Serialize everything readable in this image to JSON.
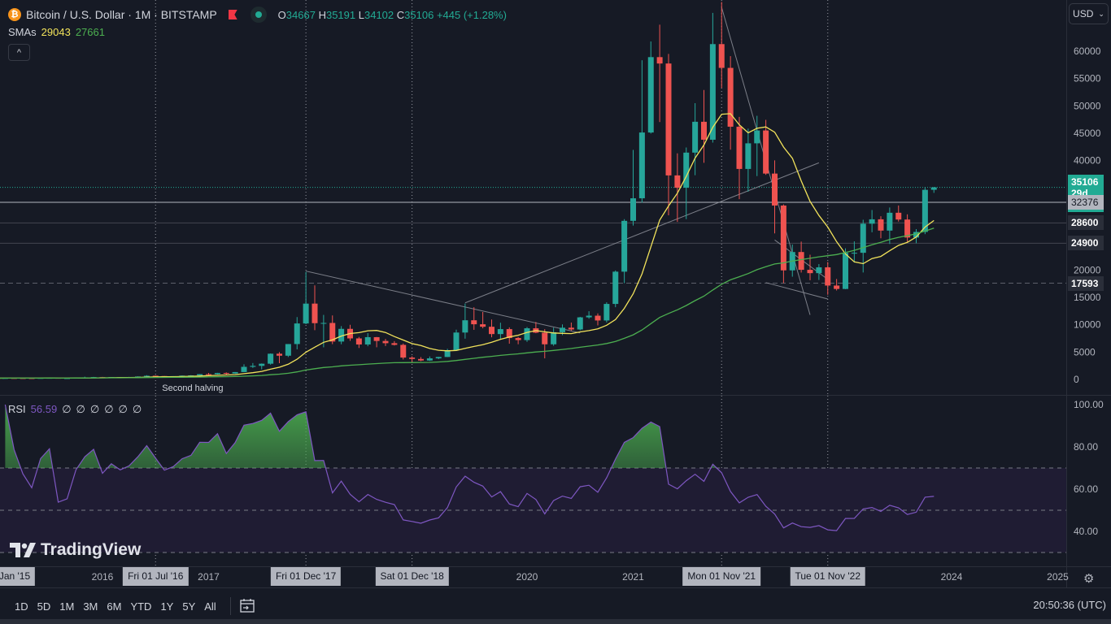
{
  "header": {
    "symbol": "Bitcoin / U.S. Dollar · 1M · BITSTAMP",
    "open_label": "O",
    "open": "34667",
    "high_label": "H",
    "high": "35191",
    "low_label": "L",
    "low": "34102",
    "close_label": "C",
    "close": "35106",
    "change": "+445 (+1.28%)",
    "coin_glyph": "₿"
  },
  "sma_legend": {
    "label": "SMAs",
    "sma1": "29043",
    "sma2": "27661"
  },
  "collapse_glyph": "^",
  "rsi_legend": {
    "label": "RSI",
    "value": "56.59",
    "extras": [
      "∅",
      "∅",
      "∅",
      "∅",
      "∅",
      "∅"
    ]
  },
  "currency": "USD",
  "price_tags": [
    {
      "price": 35106,
      "text": "35106",
      "sub": "29d 4h",
      "bg": "#22ab94",
      "fg": "#ffffff"
    },
    {
      "price": 32376,
      "text": "32376",
      "bg": "#b2b5be",
      "fg": "#131722"
    },
    {
      "price": 28600,
      "text": "28600",
      "bg": "#2a2e39",
      "fg": "#ffffff"
    },
    {
      "price": 24900,
      "text": "24900",
      "bg": "#2a2e39",
      "fg": "#ffffff"
    },
    {
      "price": 17593,
      "text": "17593",
      "bg": "#2a2e39",
      "fg": "#ffffff"
    }
  ],
  "time_labels": [
    {
      "text": "Jan '15",
      "month": "2015-01",
      "box": true
    },
    {
      "text": "2016",
      "month": "2016-01"
    },
    {
      "text": "Fri 01 Jul '16",
      "month": "2016-07",
      "box": true
    },
    {
      "text": "2017",
      "month": "2017-01"
    },
    {
      "text": "Fri 01 Dec '17",
      "month": "2017-12",
      "box": true
    },
    {
      "text": "Sat 01 Dec '18",
      "month": "2018-12",
      "box": true
    },
    {
      "text": "2020",
      "month": "2020-01"
    },
    {
      "text": "2021",
      "month": "2021-01"
    },
    {
      "text": "Mon 01 Nov '21",
      "month": "2021-11",
      "box": true
    },
    {
      "text": "Tue 01 Nov '22",
      "month": "2022-11",
      "box": true
    },
    {
      "text": "2024",
      "month": "2024-01"
    },
    {
      "text": "2025",
      "month": "2025-01"
    }
  ],
  "toolbar": {
    "ranges": [
      "1D",
      "5D",
      "1M",
      "3M",
      "6M",
      "YTD",
      "1Y",
      "5Y",
      "All"
    ],
    "clock": "20:50:36 (UTC)"
  },
  "watermark": "TradingView",
  "colors": {
    "up": "#26a69a",
    "down": "#ef5350",
    "sma1": "#f2e35b",
    "sma2": "#4caf50",
    "rsi": "#7e57c2",
    "bg": "#161a25"
  },
  "chart_data": {
    "type": "candlestick",
    "title": "Bitcoin / U.S. Dollar · 1M · BITSTAMP",
    "start_month": "2015-01",
    "interval": "1M",
    "ylim": [
      0,
      69000
    ],
    "y_ticks": [
      0,
      5000,
      10000,
      15000,
      20000,
      25000,
      30000,
      35000,
      40000,
      45000,
      50000,
      55000,
      60000
    ],
    "y_tick_labels": [
      "0",
      "5000",
      "10000",
      "15000",
      "20000",
      "",
      "",
      "",
      "40000",
      "45000",
      "50000",
      "55000",
      "60000"
    ],
    "ohlc": [
      [
        320,
        320,
        170,
        217
      ],
      [
        217,
        265,
        212,
        254
      ],
      [
        254,
        300,
        240,
        244
      ],
      [
        244,
        260,
        215,
        236
      ],
      [
        236,
        247,
        228,
        230
      ],
      [
        230,
        268,
        222,
        263
      ],
      [
        263,
        318,
        253,
        284
      ],
      [
        284,
        285,
        198,
        230
      ],
      [
        230,
        247,
        226,
        236
      ],
      [
        236,
        335,
        236,
        314
      ],
      [
        314,
        500,
        314,
        377
      ],
      [
        377,
        465,
        350,
        430
      ],
      [
        430,
        460,
        352,
        368
      ],
      [
        368,
        448,
        365,
        437
      ],
      [
        437,
        440,
        390,
        416
      ],
      [
        416,
        470,
        414,
        448
      ],
      [
        448,
        555,
        443,
        531
      ],
      [
        531,
        780,
        530,
        673
      ],
      [
        673,
        704,
        605,
        624
      ],
      [
        624,
        626,
        470,
        573
      ],
      [
        573,
        616,
        570,
        609
      ],
      [
        609,
        725,
        604,
        698
      ],
      [
        698,
        780,
        695,
        742
      ],
      [
        742,
        980,
        740,
        966
      ],
      [
        966,
        1190,
        750,
        965
      ],
      [
        965,
        1210,
        915,
        1190
      ],
      [
        1190,
        1290,
        890,
        1080
      ],
      [
        1080,
        1350,
        1060,
        1348
      ],
      [
        1348,
        2760,
        1340,
        2300
      ],
      [
        2300,
        3000,
        2100,
        2480
      ],
      [
        2480,
        2925,
        1840,
        2875
      ],
      [
        2875,
        4750,
        2700,
        4703
      ],
      [
        4703,
        5000,
        2970,
        4338
      ],
      [
        4338,
        6470,
        4100,
        6468
      ],
      [
        6468,
        11400,
        5500,
        10233
      ],
      [
        10233,
        19666,
        10100,
        13860
      ],
      [
        13860,
        17200,
        9000,
        10285
      ],
      [
        10285,
        11800,
        5873,
        10326
      ],
      [
        10326,
        11700,
        6450,
        6926
      ],
      [
        6926,
        9750,
        6430,
        9245
      ],
      [
        9245,
        9990,
        7050,
        7500
      ],
      [
        7500,
        7770,
        5750,
        6391
      ],
      [
        6391,
        8480,
        6070,
        7727
      ],
      [
        7727,
        7760,
        5880,
        7033
      ],
      [
        7033,
        7410,
        6100,
        6626
      ],
      [
        6626,
        7000,
        6200,
        6318
      ],
      [
        6318,
        6560,
        3650,
        3996
      ],
      [
        3996,
        4240,
        3150,
        3742
      ],
      [
        3742,
        4090,
        3350,
        3457
      ],
      [
        3457,
        4200,
        3380,
        3854
      ],
      [
        3854,
        4130,
        3720,
        4105
      ],
      [
        4105,
        5600,
        4090,
        5350
      ],
      [
        5350,
        9100,
        5330,
        8574
      ],
      [
        8574,
        13880,
        7450,
        10817
      ],
      [
        10817,
        13200,
        9070,
        10085
      ],
      [
        10085,
        12330,
        9350,
        9630
      ],
      [
        9630,
        10950,
        7710,
        8293
      ],
      [
        8293,
        10370,
        7300,
        9199
      ],
      [
        9199,
        9520,
        6530,
        7569
      ],
      [
        7569,
        7750,
        6430,
        7193
      ],
      [
        7193,
        9580,
        6870,
        9350
      ],
      [
        9350,
        10500,
        8450,
        8543
      ],
      [
        8543,
        9190,
        3850,
        6424
      ],
      [
        6424,
        9470,
        6150,
        8629
      ],
      [
        8629,
        10070,
        8100,
        9455
      ],
      [
        9455,
        10400,
        8900,
        9135
      ],
      [
        9135,
        11440,
        8970,
        11351
      ],
      [
        11351,
        12470,
        11100,
        11655
      ],
      [
        11655,
        12070,
        9880,
        10779
      ],
      [
        10779,
        14100,
        10420,
        13804
      ],
      [
        13804,
        19920,
        13200,
        19700
      ],
      [
        19700,
        29300,
        17600,
        28990
      ],
      [
        28990,
        41950,
        28130,
        33114
      ],
      [
        33114,
        58350,
        32300,
        45137
      ],
      [
        45137,
        61780,
        44950,
        58918
      ],
      [
        58918,
        64850,
        47050,
        57750
      ],
      [
        57750,
        59500,
        30000,
        37298
      ],
      [
        37298,
        41330,
        28800,
        35041
      ],
      [
        35041,
        42400,
        29300,
        41462
      ],
      [
        41462,
        50500,
        37330,
        47100
      ],
      [
        47100,
        52920,
        39600,
        43820
      ],
      [
        43820,
        67000,
        43300,
        61300
      ],
      [
        61300,
        69000,
        53260,
        56950
      ],
      [
        56950,
        59100,
        42000,
        46200
      ],
      [
        46200,
        47990,
        32950,
        38480
      ],
      [
        38480,
        45850,
        34320,
        43160
      ],
      [
        43160,
        48190,
        37170,
        45510
      ],
      [
        45510,
        47450,
        37400,
        37630
      ],
      [
        37630,
        40050,
        26700,
        31790
      ],
      [
        31790,
        31990,
        17600,
        19940
      ],
      [
        19940,
        24670,
        18780,
        23290
      ],
      [
        23290,
        25200,
        19540,
        20040
      ],
      [
        20040,
        22800,
        18130,
        19430
      ],
      [
        19430,
        21090,
        18180,
        20490
      ],
      [
        20490,
        21470,
        15480,
        17160
      ],
      [
        17160,
        18360,
        16260,
        16540
      ],
      [
        16540,
        23960,
        16500,
        23130
      ],
      [
        23130,
        25250,
        21360,
        23150
      ],
      [
        23150,
        29190,
        19550,
        28470
      ],
      [
        28470,
        30970,
        26900,
        29270
      ],
      [
        29270,
        29840,
        25810,
        27210
      ],
      [
        27210,
        31430,
        24760,
        30470
      ],
      [
        30470,
        31800,
        28860,
        29230
      ],
      [
        29230,
        30180,
        25170,
        25940
      ],
      [
        25940,
        27480,
        24900,
        26960
      ],
      [
        26960,
        35190,
        26560,
        34660
      ],
      [
        34667,
        35191,
        34102,
        35106
      ]
    ],
    "indicators": [
      {
        "name": "SMA",
        "period": 10,
        "color": "sma1"
      },
      {
        "name": "SMA",
        "period": 50,
        "color": "sma2"
      }
    ],
    "horizontal_lines": [
      {
        "price": 35106,
        "style": "dotted"
      },
      {
        "price": 32376,
        "style": "solid"
      },
      {
        "price": 28600,
        "style": "solid"
      },
      {
        "price": 24900,
        "style": "solid"
      },
      {
        "price": 17593,
        "style": "dashed"
      }
    ],
    "vertical_lines": [
      "2016-07",
      "2017-12",
      "2018-12",
      "2021-11",
      "2022-11"
    ],
    "annotations": [
      {
        "text": "Second halving",
        "month": "2016-07",
        "price": -1500
      }
    ],
    "trendlines": [
      [
        [
          "2017-12",
          19800
        ],
        [
          "2020-07",
          8500
        ]
      ],
      [
        [
          "2019-06",
          14000
        ],
        [
          "2022-10",
          39600
        ]
      ],
      [
        [
          "2021-11",
          68000
        ],
        [
          "2022-09",
          11800
        ]
      ],
      [
        [
          "2022-04",
          17700
        ],
        [
          "2022-11",
          14700
        ]
      ],
      [
        [
          "2022-05",
          25500
        ],
        [
          "2022-11",
          18300
        ]
      ]
    ],
    "rsi": {
      "period": 14,
      "ylim": [
        28,
        100
      ],
      "y_ticks": [
        100,
        80,
        60,
        40
      ],
      "y_tick_labels": [
        "100.00",
        "80.00",
        "60.00",
        "40.00"
      ],
      "bands": [
        70,
        50,
        30
      ]
    }
  }
}
